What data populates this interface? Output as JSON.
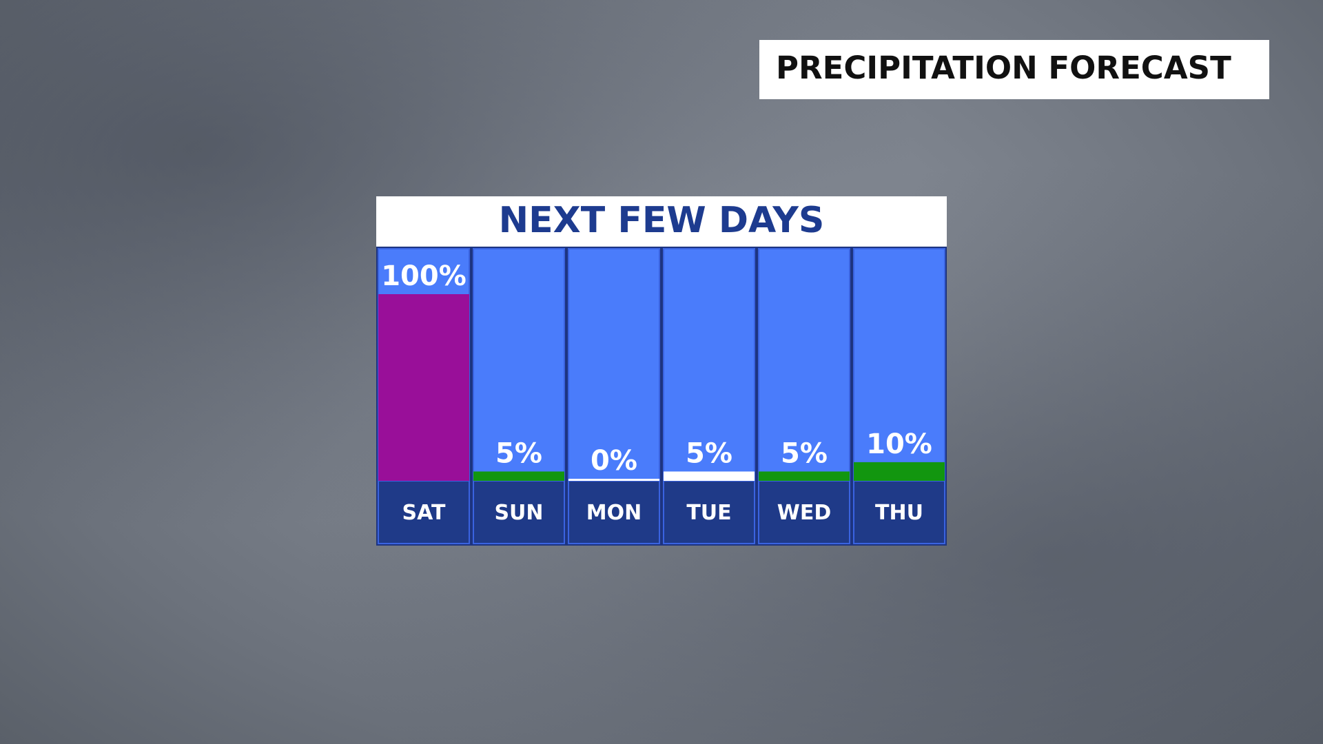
{
  "header": {
    "title": "PRECIPITATION FORECAST"
  },
  "chart_data": {
    "type": "bar",
    "title": "NEXT FEW DAYS",
    "categories": [
      "SAT",
      "SUN",
      "MON",
      "TUE",
      "WED",
      "THU"
    ],
    "values": [
      100,
      5,
      0,
      5,
      5,
      10
    ],
    "value_labels": [
      "100%",
      "5%",
      "0%",
      "5%",
      "5%",
      "10%"
    ],
    "colors": [
      "#990f99",
      "#12960f",
      "#ffffff",
      "#ffffff",
      "#12960f",
      "#12960f"
    ],
    "ylim": [
      0,
      100
    ]
  }
}
